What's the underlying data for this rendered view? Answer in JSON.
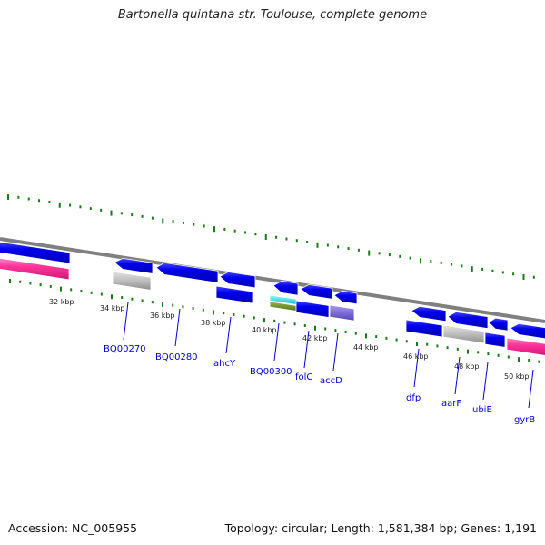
{
  "title": "Bartonella quintana str. Toulouse, complete genome",
  "footer": {
    "accession": "Accession: NC_005955",
    "summary": "Topology: circular; Length: 1,581,384 bp; Genes: 1,191"
  },
  "colors": {
    "backbone": "#808080",
    "tick": "#1a7a1a",
    "gene": "#0000e8",
    "rrna": "#ff3399",
    "pseudo": "#bbbbbb",
    "cyan": "#22d4d4",
    "olive": "#6e8a2a",
    "violet": "#7a66dd",
    "label": "#0000cc"
  },
  "kbp_labels": [
    "32 kbp",
    "34 kbp",
    "36 kbp",
    "38 kbp",
    "40 kbp",
    "42 kbp",
    "44 kbp",
    "46 kbp",
    "48 kbp",
    "50 kbp"
  ],
  "gene_labels": [
    "BQ00270",
    "BQ00280",
    "ahcY",
    "BQ00300",
    "folC",
    "accD",
    "dfp",
    "aarF",
    "ubiE",
    "gyrB"
  ]
}
